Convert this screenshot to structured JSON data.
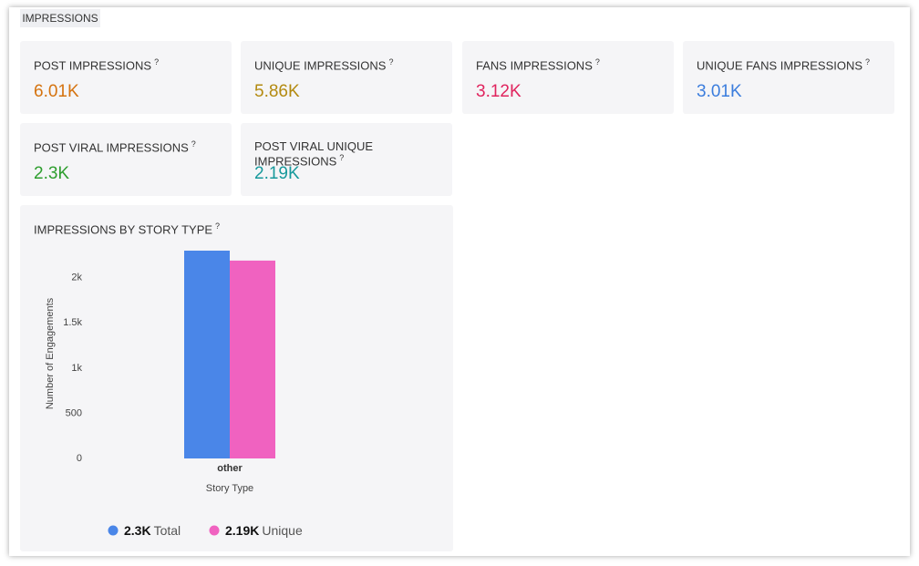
{
  "header": {
    "title": "IMPRESSIONS"
  },
  "cards": [
    {
      "label": "POST IMPRESSIONS",
      "help": "?",
      "value": "6.01K",
      "color": "#d5730f"
    },
    {
      "label": "UNIQUE IMPRESSIONS",
      "help": "?",
      "value": "5.86K",
      "color": "#b38a10"
    },
    {
      "label": "FANS IMPRESSIONS",
      "help": "?",
      "value": "3.12K",
      "color": "#e0245e"
    },
    {
      "label": "UNIQUE FANS IMPRESSIONS",
      "help": "?",
      "value": "3.01K",
      "color": "#3b7ddd"
    },
    {
      "label": "POST VIRAL IMPRESSIONS",
      "help": "?",
      "value": "2.3K",
      "color": "#2e9e2e"
    },
    {
      "label": "POST VIRAL UNIQUE IMPRESSIONS",
      "help": "?",
      "value": "2.19K",
      "color": "#17999b"
    }
  ],
  "chart_data": {
    "type": "bar",
    "title": "IMPRESSIONS BY STORY TYPE",
    "help": "?",
    "y_label": "Number of Engagements",
    "x_label": "Story Type",
    "categories": [
      "other"
    ],
    "series": [
      {
        "name": "Total",
        "color": "#4a86e8",
        "values": [
          2300
        ],
        "value_labels": [
          "2.3K"
        ]
      },
      {
        "name": "Unique",
        "color": "#f062c0",
        "values": [
          2190
        ],
        "value_labels": [
          "2.19K"
        ]
      }
    ],
    "ylim": [
      0,
      2300
    ],
    "yticks": [
      0,
      500,
      {
        "value": 1000,
        "label": "1k"
      },
      {
        "value": 1500,
        "label": "1.5k"
      },
      {
        "value": 2000,
        "label": "2k"
      }
    ]
  }
}
